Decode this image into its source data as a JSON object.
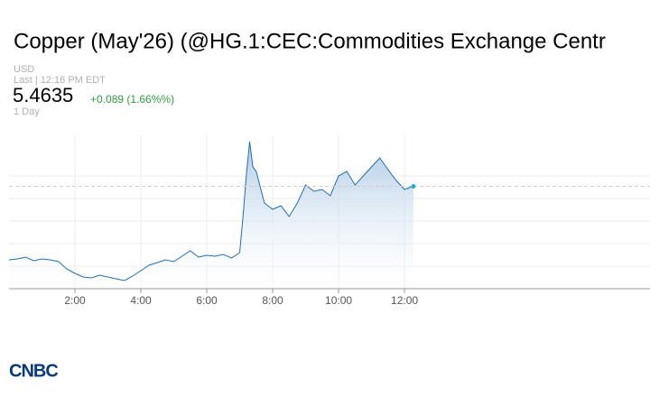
{
  "chart_data": {
    "type": "area",
    "title": "Copper (May'26) (@HG.1:CEC:Commodities Exchange Centr",
    "currency": "USD",
    "timestamp": "Last | 12:16 PM EDT",
    "price": "5.4635",
    "change": "+0.089 (1.66%%)",
    "range": "1 Day",
    "watermark": "CNBC",
    "logo": "CNBC",
    "color": "#1f6fb4",
    "x": [
      0,
      0.25,
      0.5,
      0.75,
      1,
      1.25,
      1.5,
      1.75,
      2,
      2.25,
      2.5,
      2.75,
      3,
      3.25,
      3.5,
      3.75,
      4,
      4.25,
      4.5,
      4.75,
      5,
      5.25,
      5.5,
      5.75,
      6,
      6.25,
      6.5,
      6.75,
      7,
      7.1,
      7.2,
      7.3,
      7.4,
      7.5,
      7.75,
      8,
      8.25,
      8.5,
      8.75,
      9,
      9.25,
      9.5,
      9.75,
      10,
      10.25,
      10.5,
      10.75,
      11,
      11.25,
      11.5,
      11.75,
      12,
      12.27
    ],
    "values": [
      5.382,
      5.383,
      5.385,
      5.381,
      5.383,
      5.382,
      5.38,
      5.372,
      5.367,
      5.363,
      5.362,
      5.365,
      5.363,
      5.361,
      5.359,
      5.364,
      5.37,
      5.376,
      5.379,
      5.382,
      5.38,
      5.386,
      5.392,
      5.385,
      5.387,
      5.386,
      5.388,
      5.384,
      5.39,
      5.43,
      5.475,
      5.513,
      5.485,
      5.48,
      5.445,
      5.438,
      5.442,
      5.43,
      5.445,
      5.465,
      5.458,
      5.46,
      5.453,
      5.475,
      5.48,
      5.465,
      5.475,
      5.485,
      5.495,
      5.482,
      5.47,
      5.46,
      5.4635
    ],
    "xlim": [
      0,
      19.45
    ],
    "xticks": [
      {
        "value": 2,
        "label": "2:00"
      },
      {
        "value": 4,
        "label": "4:00"
      },
      {
        "value": 6,
        "label": "6:00"
      },
      {
        "value": 8,
        "label": "8:00"
      },
      {
        "value": 10,
        "label": "10:00"
      },
      {
        "value": 12,
        "label": "12:00"
      }
    ],
    "ylim": [
      5.35,
      5.52
    ],
    "yticks": [
      5.375,
      5.4,
      5.425,
      5.45,
      5.475
    ],
    "grid": true
  }
}
